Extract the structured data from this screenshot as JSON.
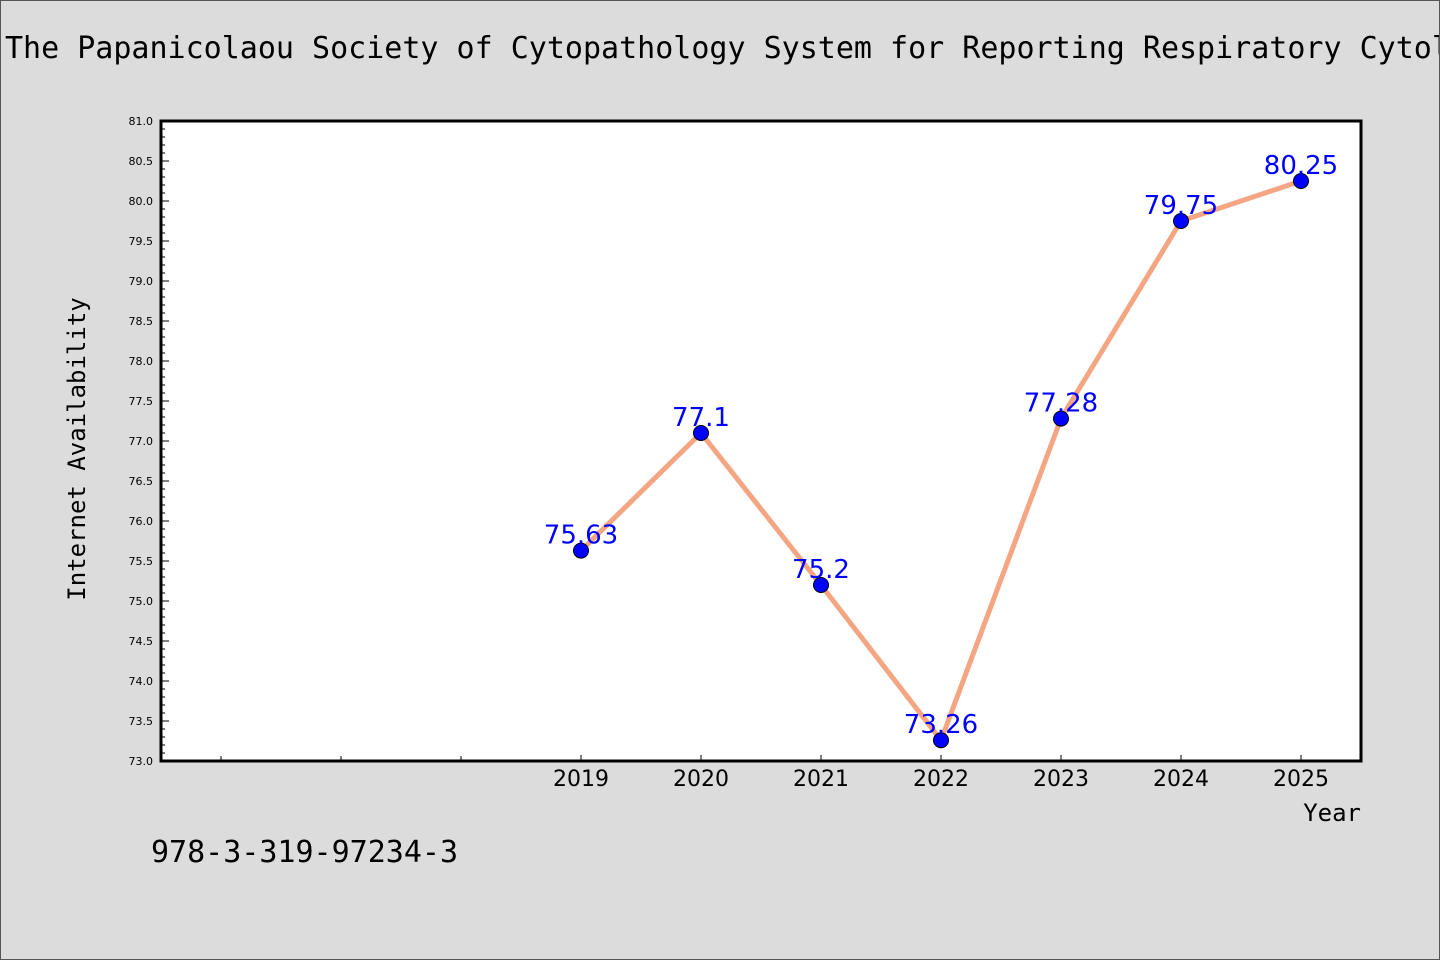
{
  "chart_data": {
    "type": "line",
    "title": "The Papanicolaou Society of Cytopathology System for Reporting Respiratory Cytol",
    "xlabel": "Year",
    "ylabel": "Internet Availability",
    "x": [
      "2019",
      "2020",
      "2021",
      "2022",
      "2023",
      "2024",
      "2025"
    ],
    "series": [
      {
        "values": [
          75.63,
          77.1,
          75.2,
          73.26,
          77.28,
          79.75,
          80.25
        ]
      }
    ],
    "data_labels": [
      "75.63",
      "77.1",
      "75.2",
      "73.26",
      "77.28",
      "79.75",
      "80.25"
    ],
    "ylim": [
      73.0,
      81.0
    ],
    "y_ticks": [
      "73.0",
      "73.5",
      "74.0",
      "74.5",
      "75.0",
      "75.5",
      "76.0",
      "76.5",
      "77.0",
      "77.5",
      "78.0",
      "78.5",
      "79.0",
      "79.5",
      "80.0",
      "80.5",
      "81.0"
    ],
    "grid": false,
    "colors": {
      "line": "#f4a582",
      "marker": "#0000ff",
      "label": "#0000ff",
      "background": "#dcdcdc",
      "plot_bg": "#ffffff"
    }
  },
  "footnote": "978-3-319-97234-3"
}
